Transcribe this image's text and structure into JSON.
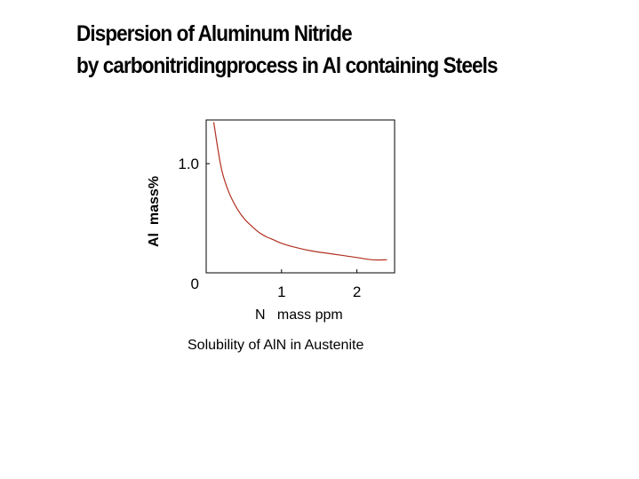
{
  "slide": {
    "title_line1": "Dispersion of Aluminum Nitride",
    "title_line2": "by carbonitridingprocess in Al containing Steels"
  },
  "chart_data": {
    "type": "line",
    "title": "",
    "caption": "Solubility of AlN in Austenite",
    "xlabel": "N   mass ppm",
    "ylabel": "Al  mass%",
    "xlim": [
      0,
      2.5
    ],
    "ylim": [
      0,
      1.4
    ],
    "x_ticks": [
      "1",
      "2"
    ],
    "x_tick_values": [
      1,
      2
    ],
    "y_ticks": [
      "0",
      "1.0"
    ],
    "y_tick_values": [
      0,
      1.0
    ],
    "grid": false,
    "line_color": "#b03020",
    "series": [
      {
        "x": [
          0.1,
          0.2,
          0.3,
          0.4,
          0.5,
          0.6,
          0.7,
          0.8,
          0.9,
          1.0,
          1.2,
          1.4,
          1.6,
          1.8,
          2.0,
          2.2,
          2.4
        ],
        "values": [
          1.38,
          0.96,
          0.74,
          0.6,
          0.5,
          0.43,
          0.37,
          0.33,
          0.3,
          0.27,
          0.23,
          0.2,
          0.18,
          0.16,
          0.14,
          0.12,
          0.12
        ]
      }
    ]
  }
}
